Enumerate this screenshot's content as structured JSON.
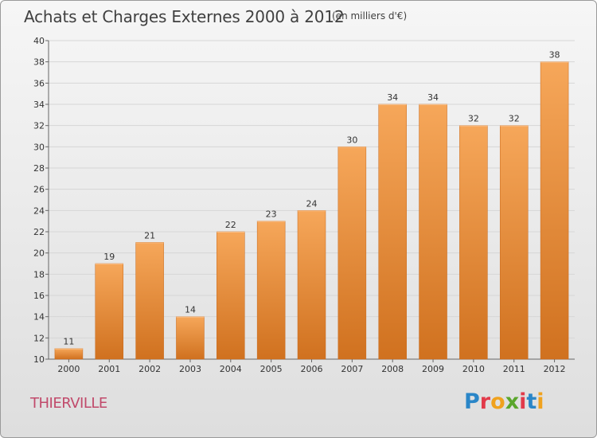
{
  "title": "Achats et Charges Externes 2000 à 2012",
  "subtitle": "(en milliers d'€)",
  "commune": "THIERVILLE",
  "logo": {
    "letters": [
      "P",
      "r",
      "o",
      "x",
      "i",
      "t",
      "i"
    ],
    "colors": [
      "#2a86c8",
      "#e23a4a",
      "#f0a21e",
      "#5aa62c",
      "#e23a4a",
      "#2a86c8",
      "#f0a21e"
    ]
  },
  "colors": {
    "bar_top": "#f6a75a",
    "bar_bottom": "#d0711f",
    "grid": "#d6d6d6",
    "axis_text": "#333333"
  },
  "chart_data": {
    "type": "bar",
    "title": "Achats et Charges Externes 2000 à 2012",
    "subtitle": "(en milliers d'€)",
    "categories": [
      "2000",
      "2001",
      "2002",
      "2003",
      "2004",
      "2005",
      "2006",
      "2007",
      "2008",
      "2009",
      "2010",
      "2011",
      "2012"
    ],
    "values": [
      11,
      19,
      21,
      14,
      22,
      23,
      24,
      30,
      34,
      34,
      32,
      32,
      38
    ],
    "ylim": [
      10,
      40
    ],
    "yticks": [
      10,
      12,
      14,
      16,
      18,
      20,
      22,
      24,
      26,
      28,
      30,
      32,
      34,
      36,
      38,
      40
    ],
    "grid": true,
    "data_labels": true
  }
}
